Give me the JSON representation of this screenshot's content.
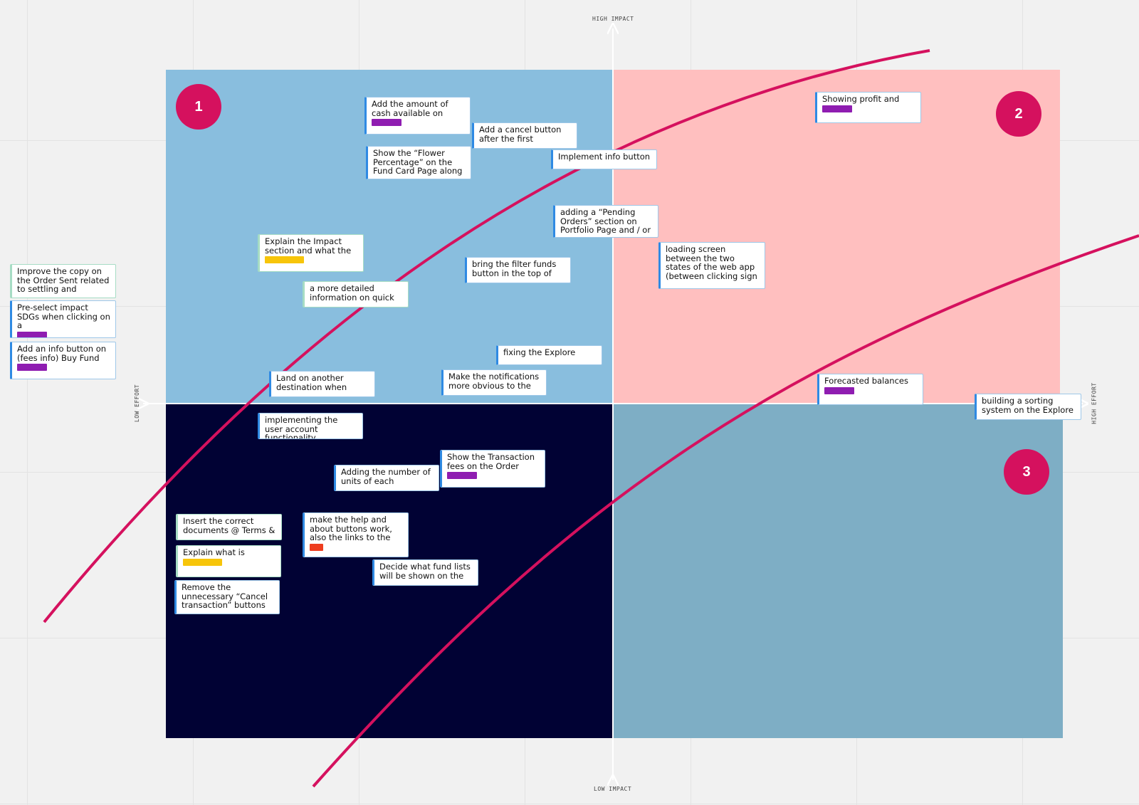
{
  "axes": {
    "top": "HIGH IMPACT",
    "bottom": "LOW IMPACT",
    "left": "LOW EFFORT",
    "right": "HIGH EFFORT"
  },
  "badges": [
    "1",
    "2",
    "3"
  ],
  "colors": {
    "quadrant_top_left": "#89bede",
    "quadrant_top_right": "#ffbfbf",
    "quadrant_bottom_left": "#010234",
    "quadrant_bottom_right": "#7eaec5",
    "curve": "#d5115e",
    "badge": "#d5115e",
    "tag_purple": "#8f1db1",
    "tag_yellow": "#f7c50a",
    "tag_orange": "#ee3d1f"
  },
  "notes": [
    {
      "text": "Add the amount of cash available on",
      "tag": "purple"
    },
    {
      "text": "Add a cancel button after the first"
    },
    {
      "text": "Show the “Flower Percentage” on the Fund Card Page along"
    },
    {
      "text": "Implement info button"
    },
    {
      "text": "Showing profit and",
      "tag": "purple"
    },
    {
      "text": "adding a “Pending Orders” section on Portfolio Page and / or"
    },
    {
      "text": "Explain the Impact section and what the",
      "tag": "yellow"
    },
    {
      "text": "bring the filter funds button in the top of"
    },
    {
      "text": "loading screen between the two states of the web app (between clicking sign"
    },
    {
      "text": "a more detailed information on quick"
    },
    {
      "text": "Improve the copy on the Order Sent related to settling and"
    },
    {
      "text": "Pre-select impact SDGs when clicking on a",
      "tag": "purple"
    },
    {
      "text": "Add an info button on (fees info) Buy Fund",
      "tag": "purple"
    },
    {
      "text": "fixing the Explore"
    },
    {
      "text": "Land on another destination when"
    },
    {
      "text": "Make the notifications more obvious to the"
    },
    {
      "text": "Forecasted balances",
      "tag": "purple"
    },
    {
      "text": "building a sorting system on the Explore"
    },
    {
      "text": "implementing the user account functionality"
    },
    {
      "text": "Show the Transaction fees on the Order",
      "tag": "purple"
    },
    {
      "text": "Adding the number of units of each"
    },
    {
      "text": "Insert the correct documents @ Terms &"
    },
    {
      "text": "make the help and about buttons work, also the links to the",
      "tag": "orange"
    },
    {
      "text": "Explain what is",
      "tag": "yellow"
    },
    {
      "text": "Decide what fund lists will be shown on the"
    },
    {
      "text": "Remove the unnecessary “Cancel transaction” buttons"
    }
  ]
}
